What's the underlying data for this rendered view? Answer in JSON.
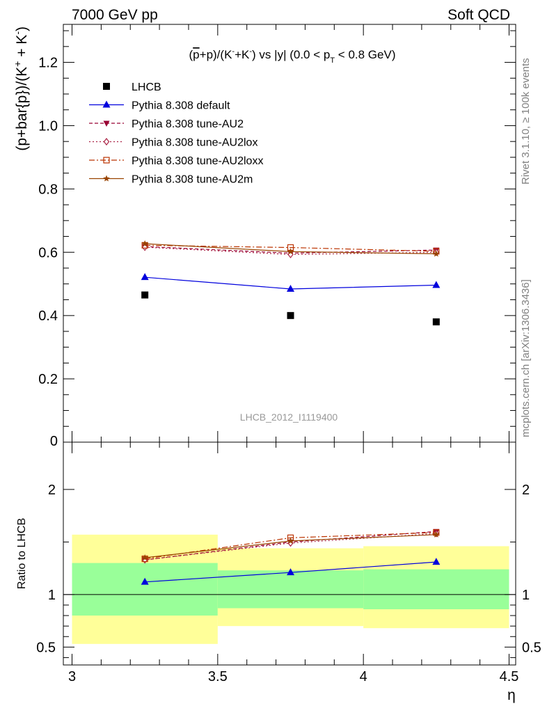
{
  "header": {
    "left": "7000 GeV pp",
    "right": "Soft QCD"
  },
  "side_text": {
    "rivet": "Rivet 3.1.10, ≥ 100k events",
    "mcplots": "mcplots.cern.ch [arXiv:1306.3436]"
  },
  "watermark": "LHCB_2012_I1119400",
  "colors": {
    "data": "#000000",
    "default": "#0000dd",
    "au2": "#990033",
    "au2lox": "#aa2244",
    "au2loxx": "#bb3300",
    "au2m": "#994400",
    "band_inner": "#99ff99",
    "band_outer": "#ffff99"
  },
  "chart_data": [
    {
      "type": "scatter",
      "title": "(p̄+p)/(K⁻+K⁻) vs |y| (0.0 < p_T < 0.8 GeV)",
      "ylabel": "(p+bar{p})/(K⁺ + K⁻)",
      "xlim": [
        3.0,
        4.5
      ],
      "ylim": [
        0.0,
        1.32
      ],
      "yticks": [
        0.2,
        0.4,
        0.6,
        0.8,
        1,
        1.2
      ],
      "legend_position": "top-left",
      "x": [
        3.25,
        3.75,
        4.25
      ],
      "series": [
        {
          "name": "LHCB",
          "style": "data",
          "values": [
            0.465,
            0.4,
            0.38
          ]
        },
        {
          "name": "Pythia 8.308 default",
          "style": "default",
          "values": [
            0.521,
            0.484,
            0.496
          ]
        },
        {
          "name": "Pythia 8.308 tune-AU2",
          "style": "au2",
          "values": [
            0.618,
            0.597,
            0.607
          ]
        },
        {
          "name": "Pythia 8.308 tune-AU2lox",
          "style": "au2lox",
          "values": [
            0.616,
            0.593,
            0.6
          ]
        },
        {
          "name": "Pythia 8.308 tune-AU2loxx",
          "style": "au2loxx",
          "values": [
            0.622,
            0.615,
            0.603
          ]
        },
        {
          "name": "Pythia 8.308 tune-AU2m",
          "style": "au2m",
          "values": [
            0.627,
            0.602,
            0.595
          ]
        }
      ]
    },
    {
      "type": "line",
      "ylabel": "Ratio to LHCB",
      "xlabel": "η",
      "xlim": [
        3.0,
        4.5
      ],
      "ylim": [
        0.33,
        2.45
      ],
      "yticks": [
        0.5,
        1,
        2
      ],
      "xticks": [
        3,
        3.5,
        4,
        4.5
      ],
      "bands": [
        {
          "x0": 3.0,
          "x1": 3.5,
          "inner": [
            0.8,
            1.3
          ],
          "outer": [
            0.53,
            1.57
          ]
        },
        {
          "x0": 3.5,
          "x1": 4.0,
          "inner": [
            0.87,
            1.23
          ],
          "outer": [
            0.7,
            1.44
          ]
        },
        {
          "x0": 4.0,
          "x1": 4.5,
          "inner": [
            0.86,
            1.24
          ],
          "outer": [
            0.68,
            1.46
          ]
        }
      ],
      "x": [
        3.25,
        3.75,
        4.25
      ],
      "series": [
        {
          "name": "Pythia 8.308 default",
          "style": "default",
          "values": [
            1.12,
            1.21,
            1.31
          ]
        },
        {
          "name": "Pythia 8.308 tune-AU2",
          "style": "au2",
          "values": [
            1.33,
            1.5,
            1.6
          ]
        },
        {
          "name": "Pythia 8.308 tune-AU2lox",
          "style": "au2lox",
          "values": [
            1.33,
            1.49,
            1.58
          ]
        },
        {
          "name": "Pythia 8.308 tune-AU2loxx",
          "style": "au2loxx",
          "values": [
            1.34,
            1.54,
            1.59
          ]
        },
        {
          "name": "Pythia 8.308 tune-AU2m",
          "style": "au2m",
          "values": [
            1.35,
            1.51,
            1.57
          ]
        }
      ]
    }
  ]
}
